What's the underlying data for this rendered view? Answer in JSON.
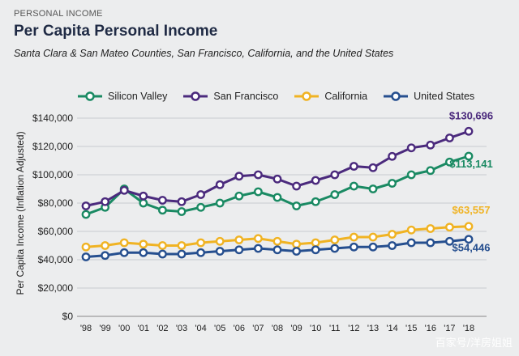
{
  "header": {
    "overline": "PERSONAL INCOME",
    "title": "Per Capita Personal Income",
    "subtitle": "Santa Clara & San Mateo Counties, San Francisco, California, and the United States"
  },
  "watermark": "百家号/洋房姐姐",
  "chart_data": {
    "type": "line",
    "title": "Per Capita Personal Income",
    "ylabel": "Per Capita Income (Inflation Adjusted)",
    "xlabel": "",
    "categories": [
      "'98",
      "'99",
      "'00",
      "'01",
      "'02",
      "'03",
      "'04",
      "'05",
      "'06",
      "'07",
      "'08",
      "'09",
      "'10",
      "'11",
      "'12",
      "'13",
      "'14",
      "'15",
      "'16",
      "'17",
      "'18"
    ],
    "ylim": [
      0,
      140000
    ],
    "yticks": [
      0,
      20000,
      40000,
      60000,
      80000,
      100000,
      120000,
      140000
    ],
    "ytick_labels": [
      "$0",
      "$20,000",
      "$40,000",
      "$60,000",
      "$80,000",
      "$100,000",
      "$120,000",
      "$140,000"
    ],
    "grid": true,
    "legend_position": "top",
    "series": [
      {
        "name": "Silicon Valley",
        "color": "#1a8a63",
        "values": [
          72000,
          77000,
          90000,
          80000,
          75000,
          74000,
          77000,
          80000,
          85000,
          88000,
          84000,
          78000,
          81000,
          86000,
          92000,
          90000,
          94000,
          100000,
          103000,
          109000,
          113141
        ],
        "end_label": "$113,141"
      },
      {
        "name": "San Francisco",
        "color": "#4b2a7d",
        "values": [
          78000,
          81000,
          89000,
          85000,
          82000,
          81000,
          86000,
          93000,
          99000,
          100000,
          97000,
          92000,
          96000,
          100000,
          106000,
          105000,
          113000,
          119000,
          121000,
          126000,
          130696
        ],
        "end_label": "$130,696"
      },
      {
        "name": "California",
        "color": "#f0b323",
        "values": [
          49000,
          50000,
          52000,
          51000,
          50000,
          50000,
          52000,
          53000,
          54000,
          55000,
          53000,
          51000,
          52000,
          54000,
          56000,
          56000,
          58000,
          61000,
          62000,
          63000,
          63557
        ],
        "end_label": "$63,557"
      },
      {
        "name": "United States",
        "color": "#264f8f",
        "values": [
          42000,
          43000,
          45000,
          45000,
          44000,
          44000,
          45000,
          46000,
          47000,
          48000,
          47000,
          46000,
          47000,
          48000,
          49000,
          49000,
          50000,
          52000,
          52000,
          53000,
          54446
        ],
        "end_label": "$54,446"
      }
    ]
  }
}
